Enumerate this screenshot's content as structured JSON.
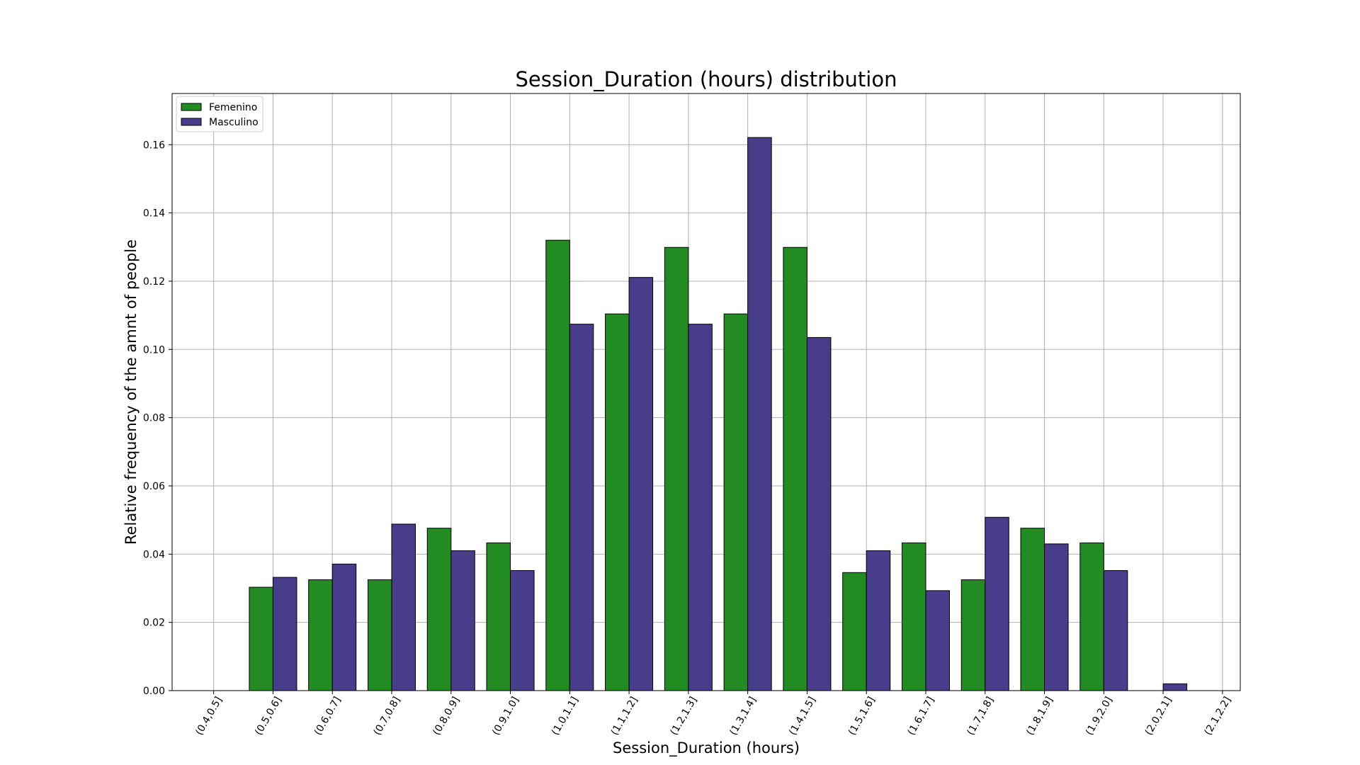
{
  "chart_data": {
    "type": "bar",
    "title": "Session_Duration (hours) distribution",
    "xlabel": "Session_Duration (hours)",
    "ylabel": "Relative frequency of the amnt of people",
    "categories": [
      "(0.4,0.5]",
      "(0.5,0.6]",
      "(0.6,0.7]",
      "(0.7,0.8]",
      "(0.8,0.9]",
      "(0.9,1.0]",
      "(1.0,1.1]",
      "(1.1,1.2]",
      "(1.2,1.3]",
      "(1.3,1.4]",
      "(1.4,1.5]",
      "(1.5,1.6]",
      "(1.6,1.7]",
      "(1.7,1.8]",
      "(1.8,1.9]",
      "(1.9,2.0]",
      "(2.0,2.1]",
      "(2.1,2.2]"
    ],
    "series": [
      {
        "name": "Femenino",
        "color": "#228b22",
        "values": [
          0.0,
          0.0303,
          0.0325,
          0.0325,
          0.0476,
          0.0433,
          0.132,
          0.1104,
          0.1299,
          0.1104,
          0.1299,
          0.0346,
          0.0433,
          0.0325,
          0.0476,
          0.0433,
          0.0,
          0.0
        ]
      },
      {
        "name": "Masculino",
        "color": "#483d8b",
        "values": [
          0.0,
          0.0332,
          0.0371,
          0.0488,
          0.041,
          0.0352,
          0.1074,
          0.1211,
          0.1074,
          0.1621,
          0.1035,
          0.041,
          0.0293,
          0.0508,
          0.043,
          0.0352,
          0.002,
          0.0
        ]
      }
    ],
    "yticks": [
      "0.00",
      "0.02",
      "0.04",
      "0.06",
      "0.08",
      "0.10",
      "0.12",
      "0.14",
      "0.16"
    ],
    "ylim": [
      0,
      0.175
    ],
    "grid": true,
    "legend_position": "top-left"
  }
}
